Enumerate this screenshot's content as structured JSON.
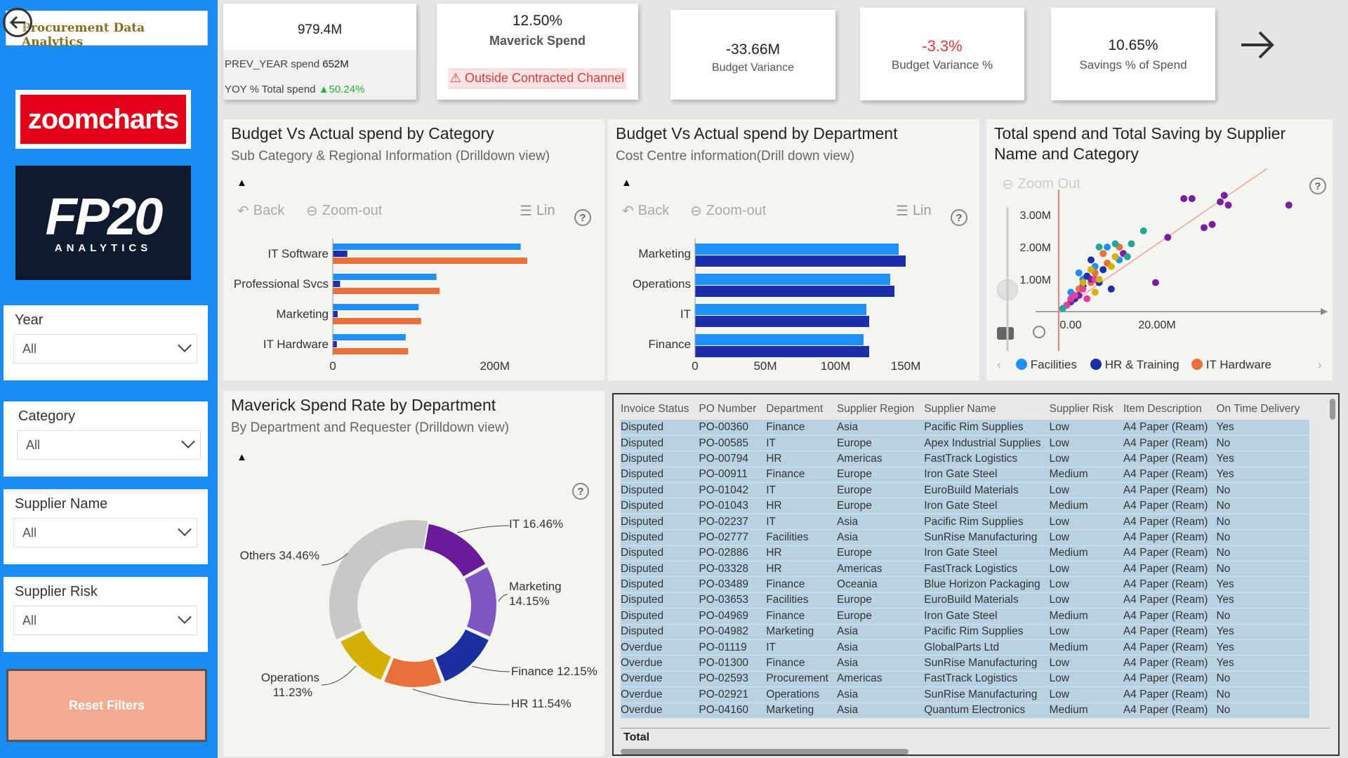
{
  "header": {
    "title": "Procurement Data Analytics"
  },
  "logos": {
    "zoomcharts": "zoomcharts",
    "fp20_main": "FP20",
    "fp20_sub": "ANALYTICS"
  },
  "slicers": [
    {
      "label": "Year",
      "value": "All"
    },
    {
      "label": "Category",
      "value": "All"
    },
    {
      "label": "Supplier Name",
      "value": "All"
    },
    {
      "label": "Supplier Risk",
      "value": "All"
    }
  ],
  "reset_label": "Reset Filters",
  "kpis": {
    "total_spend": {
      "value": "979.4M",
      "prev_label": "PREV_YEAR spend",
      "prev_value": "652M",
      "yoy_label": "YOY % Total spend",
      "yoy_value": "▲50.24%"
    },
    "maverick": {
      "value": "12.50%",
      "label": "Maverick Spend",
      "warning": "⚠ Outside Contracted Channel"
    },
    "budget_variance": {
      "value": "-33.66M",
      "label": "Budget Variance"
    },
    "budget_variance_pct": {
      "value": "-3.3%",
      "label": "Budget Variance %"
    },
    "savings_pct": {
      "value": "10.65%",
      "label": "Savings % of Spend"
    }
  },
  "toolbar": {
    "back": "Back",
    "zoom_out": "Zoom-out",
    "lin": "Lin",
    "scatter_zoom_out": "Zoom Out",
    "help": "?"
  },
  "colors": {
    "budget": "#1e90ff",
    "actual_cat": "#e8703a",
    "actual_dept": "#1b2fa8",
    "accent": "#1a8cf5"
  },
  "charts": {
    "category": {
      "title": "Budget Vs Actual spend by Category",
      "subtitle": "Sub Category & Regional Information (Drilldown view)"
    },
    "department": {
      "title": "Budget Vs Actual spend by Department",
      "subtitle": "Cost Centre information(Drill down view)"
    },
    "scatter": {
      "title_line1": "Total spend and Total Saving by Supplier",
      "title_line2": "Name and Category"
    },
    "maverick": {
      "title": "Maverick Spend Rate by Department",
      "subtitle": "By Department and Requester (Drilldown view)"
    }
  },
  "chart_data": [
    {
      "type": "bar",
      "categories": [
        "IT Software",
        "Professional Svcs",
        "Marketing",
        "IT Hardware"
      ],
      "series": [
        {
          "values": [
            232,
            128,
            106,
            90
          ]
        },
        {
          "values": [
            18,
            9,
            6,
            5
          ]
        },
        {
          "values": [
            240,
            132,
            109,
            93
          ]
        }
      ],
      "xticks": [
        "0",
        "200M"
      ],
      "xlim": [
        0,
        260
      ]
    },
    {
      "type": "bar",
      "categories": [
        "Marketing",
        "Operations",
        "IT",
        "Finance"
      ],
      "series": [
        {
          "values": [
            145,
            139,
            122,
            120
          ]
        },
        {
          "values": [
            150,
            142,
            124,
            124
          ]
        }
      ],
      "xticks": [
        "0",
        "50M",
        "100M",
        "150M"
      ],
      "xlim": [
        0,
        160
      ]
    },
    {
      "type": "scatter",
      "yticks": [
        "1.00M",
        "2.00M",
        "3.00M"
      ],
      "xticks": [
        "0.00",
        "20.00M"
      ],
      "legend": [
        "Facilities",
        "HR & Training",
        "IT Hardware"
      ],
      "series": [
        {
          "name": "Facilities",
          "color": "#1e90ff",
          "points": [
            [
              3,
              0.6
            ],
            [
              6,
              1.0
            ],
            [
              9,
              1.4
            ],
            [
              12,
              2.0
            ],
            [
              15,
              1.6
            ],
            [
              5,
              1.2
            ]
          ]
        },
        {
          "name": "HR & Training",
          "color": "#1b2fa8",
          "points": [
            [
              4,
              0.4
            ],
            [
              7,
              1.1
            ],
            [
              10,
              0.9
            ],
            [
              8,
              1.6
            ],
            [
              13,
              0.7
            ],
            [
              11,
              1.3
            ],
            [
              6,
              0.8
            ]
          ]
        },
        {
          "name": "IT Hardware",
          "color": "#e8703a",
          "points": [
            [
              5,
              0.7
            ],
            [
              9,
              1.2
            ],
            [
              12,
              1.5
            ],
            [
              15,
              2.0
            ],
            [
              8,
              0.9
            ],
            [
              11,
              1.8
            ]
          ]
        },
        {
          "name": "",
          "color": "#7b1fa2",
          "points": [
            [
              31,
              3.5
            ],
            [
              33,
              3.5
            ],
            [
              40,
              3.4
            ],
            [
              41,
              3.6
            ],
            [
              42,
              3.3
            ],
            [
              57,
              3.3
            ],
            [
              38,
              2.7
            ],
            [
              36,
              2.6
            ],
            [
              27,
              2.3
            ],
            [
              24,
              0.9
            ],
            [
              5,
              0.5
            ],
            [
              3,
              0.3
            ],
            [
              8,
              1.0
            ],
            [
              16,
              1.8
            ]
          ]
        },
        {
          "name": "",
          "color": "#e040a0",
          "points": [
            [
              2,
              0.2
            ],
            [
              4,
              0.5
            ],
            [
              6,
              0.7
            ],
            [
              9,
              1.0
            ],
            [
              7,
              0.4
            ],
            [
              3,
              0.4
            ]
          ]
        },
        {
          "name": "",
          "color": "#d4b000",
          "points": [
            [
              6,
              0.9
            ],
            [
              8,
              1.3
            ],
            [
              10,
              1.0
            ],
            [
              13,
              1.4
            ],
            [
              9,
              0.6
            ],
            [
              14,
              1.7
            ]
          ]
        },
        {
          "name": "",
          "color": "#26a69a",
          "points": [
            [
              10,
              2.0
            ],
            [
              14,
              2.1
            ],
            [
              18,
              2.1
            ],
            [
              21,
              2.5
            ],
            [
              17,
              1.7
            ],
            [
              1,
              0.1
            ]
          ]
        }
      ]
    },
    {
      "type": "pie",
      "labels": [
        "IT",
        "Marketing",
        "Finance",
        "HR",
        "Operations",
        "Others"
      ],
      "display": [
        "IT 16.46%",
        "Marketing 14.15%",
        "Finance 12.15%",
        "HR 11.54%",
        "Operations 11.23%",
        "Others 34.46%"
      ],
      "values": [
        16.46,
        14.15,
        12.15,
        11.54,
        11.23,
        34.46
      ],
      "colors": [
        "#6a1b9a",
        "#7e57c2",
        "#1a2fa0",
        "#e8703a",
        "#d4b000",
        "#c8c8c8"
      ]
    }
  ],
  "table": {
    "columns": [
      "Invoice Status",
      "PO Number",
      "Department",
      "Supplier Region",
      "Supplier Name",
      "Supplier Risk",
      "Item Description",
      "On Time Delivery"
    ],
    "rows": [
      [
        "Disputed",
        "PO-00360",
        "Finance",
        "Asia",
        "Pacific Rim Supplies",
        "Low",
        "A4 Paper (Ream)",
        "Yes"
      ],
      [
        "Disputed",
        "PO-00585",
        "IT",
        "Europe",
        "Apex Industrial Supplies",
        "Low",
        "A4 Paper (Ream)",
        "No"
      ],
      [
        "Disputed",
        "PO-00794",
        "HR",
        "Americas",
        "FastTrack Logistics",
        "Low",
        "A4 Paper (Ream)",
        "Yes"
      ],
      [
        "Disputed",
        "PO-00911",
        "Finance",
        "Europe",
        "Iron Gate Steel",
        "Medium",
        "A4 Paper (Ream)",
        "Yes"
      ],
      [
        "Disputed",
        "PO-01042",
        "IT",
        "Europe",
        "EuroBuild Materials",
        "Low",
        "A4 Paper (Ream)",
        "No"
      ],
      [
        "Disputed",
        "PO-01043",
        "HR",
        "Europe",
        "Iron Gate Steel",
        "Medium",
        "A4 Paper (Ream)",
        "No"
      ],
      [
        "Disputed",
        "PO-02237",
        "IT",
        "Asia",
        "Pacific Rim Supplies",
        "Low",
        "A4 Paper (Ream)",
        "No"
      ],
      [
        "Disputed",
        "PO-02777",
        "Facilities",
        "Asia",
        "SunRise Manufacturing",
        "Low",
        "A4 Paper (Ream)",
        "No"
      ],
      [
        "Disputed",
        "PO-02886",
        "HR",
        "Europe",
        "Iron Gate Steel",
        "Medium",
        "A4 Paper (Ream)",
        "No"
      ],
      [
        "Disputed",
        "PO-03328",
        "HR",
        "Americas",
        "FastTrack Logistics",
        "Low",
        "A4 Paper (Ream)",
        "No"
      ],
      [
        "Disputed",
        "PO-03489",
        "Finance",
        "Oceania",
        "Blue Horizon Packaging",
        "Low",
        "A4 Paper (Ream)",
        "Yes"
      ],
      [
        "Disputed",
        "PO-03653",
        "Facilities",
        "Europe",
        "EuroBuild Materials",
        "Low",
        "A4 Paper (Ream)",
        "Yes"
      ],
      [
        "Disputed",
        "PO-04969",
        "Finance",
        "Europe",
        "Iron Gate Steel",
        "Medium",
        "A4 Paper (Ream)",
        "No"
      ],
      [
        "Disputed",
        "PO-04982",
        "Marketing",
        "Asia",
        "Pacific Rim Supplies",
        "Low",
        "A4 Paper (Ream)",
        "Yes"
      ],
      [
        "Overdue",
        "PO-01119",
        "IT",
        "Asia",
        "GlobalParts Ltd",
        "Medium",
        "A4 Paper (Ream)",
        "Yes"
      ],
      [
        "Overdue",
        "PO-01300",
        "Finance",
        "Asia",
        "SunRise Manufacturing",
        "Low",
        "A4 Paper (Ream)",
        "Yes"
      ],
      [
        "Overdue",
        "PO-02593",
        "Procurement",
        "Americas",
        "FastTrack Logistics",
        "Low",
        "A4 Paper (Ream)",
        "No"
      ],
      [
        "Overdue",
        "PO-02921",
        "Operations",
        "Asia",
        "SunRise Manufacturing",
        "Low",
        "A4 Paper (Ream)",
        "No"
      ],
      [
        "Overdue",
        "PO-04160",
        "Marketing",
        "Asia",
        "Quantum Electronics",
        "Medium",
        "A4 Paper (Ream)",
        "No"
      ]
    ],
    "total_label": "Total"
  }
}
